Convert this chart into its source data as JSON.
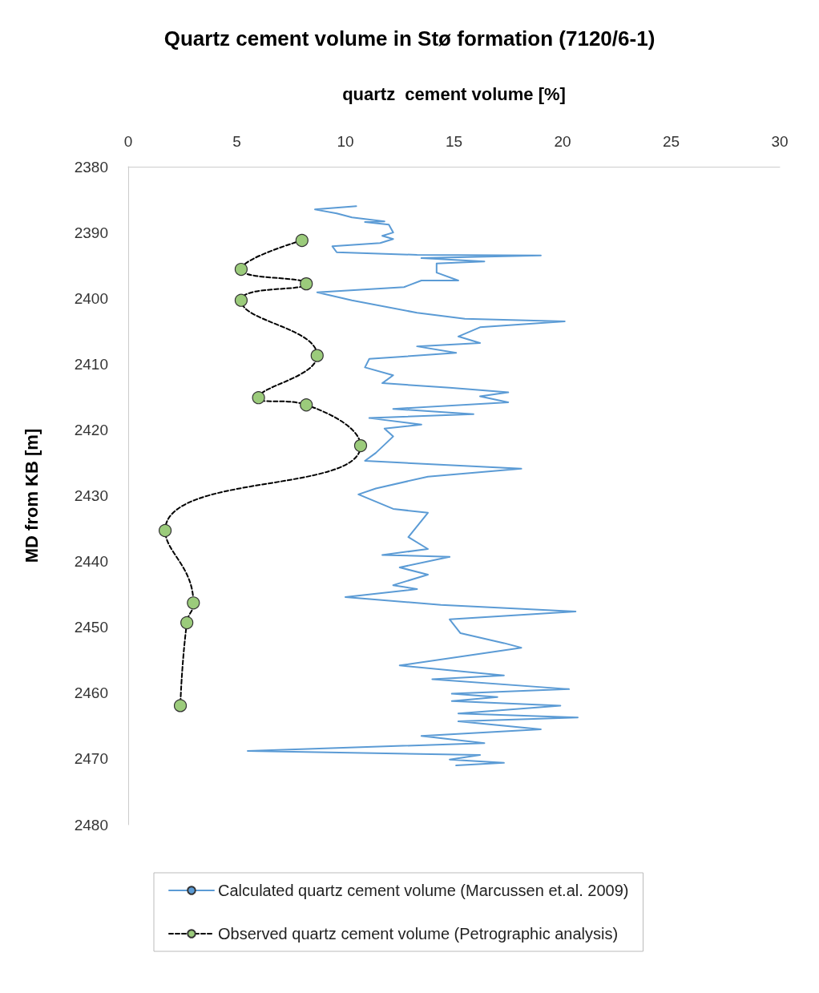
{
  "chart_data": {
    "type": "line",
    "title": "Quartz cement volume in Stø formation (7120/6-1)",
    "xlabel": "quartz  cement volume [%]",
    "ylabel": "MD from KB [m]",
    "xlim": [
      0,
      30
    ],
    "xticks": [
      0,
      5,
      10,
      15,
      20,
      25,
      30
    ],
    "ylim": [
      2480,
      2380
    ],
    "yticks": [
      2380,
      2390,
      2400,
      2410,
      2420,
      2430,
      2440,
      2450,
      2460,
      2470,
      2480
    ],
    "grid": false,
    "legend": "bottom",
    "series": [
      {
        "name": "Calculated quartz cement volume (Marcussen et.al. 2009)",
        "color": "#5b9bd5",
        "marker": "none",
        "line_style": "solid",
        "x": [
          10.5,
          8.6,
          9.6,
          10.3,
          11.8,
          10.9,
          12.0,
          12.2,
          11.7,
          12.2,
          11.6,
          9.4,
          9.6,
          13.3,
          19.0,
          13.5,
          16.4,
          14.2,
          14.2,
          15.2,
          13.5,
          12.7,
          8.7,
          10.3,
          13.3,
          15.5,
          20.1,
          16.2,
          15.2,
          16.2,
          13.3,
          15.1,
          11.1,
          10.9,
          12.2,
          11.7,
          14.8,
          17.5,
          16.2,
          17.5,
          12.2,
          15.9,
          11.1,
          13.5,
          11.8,
          12.2,
          11.4,
          10.9,
          18.1,
          13.8,
          11.4,
          10.6,
          12.2,
          13.8,
          12.9,
          13.8,
          11.7,
          14.8,
          12.5,
          13.8,
          12.2,
          13.3,
          10.0,
          14.4,
          20.6,
          14.8,
          15.3,
          17.3,
          18.1,
          12.5,
          17.3,
          14.0,
          20.3,
          14.9,
          17.0,
          14.9,
          19.9,
          15.2,
          20.7,
          15.2,
          19.0,
          13.5,
          16.4,
          5.5,
          16.2,
          14.8,
          17.3,
          15.1
        ],
        "values": [
          2386.0,
          2386.5,
          2387.1,
          2387.7,
          2388.3,
          2388.4,
          2388.8,
          2390.0,
          2390.5,
          2391.0,
          2391.6,
          2392.1,
          2393.0,
          2393.4,
          2393.5,
          2393.9,
          2394.4,
          2394.7,
          2396.1,
          2397.3,
          2397.3,
          2398.3,
          2399.1,
          2400.3,
          2402.2,
          2403.1,
          2403.5,
          2404.4,
          2405.8,
          2406.8,
          2407.3,
          2408.3,
          2409.2,
          2410.5,
          2411.7,
          2412.9,
          2413.6,
          2414.3,
          2414.9,
          2415.8,
          2416.8,
          2417.6,
          2418.2,
          2419.2,
          2419.8,
          2421.0,
          2423.5,
          2424.7,
          2425.9,
          2427.1,
          2428.9,
          2429.8,
          2432.0,
          2432.6,
          2436.3,
          2438.1,
          2439.0,
          2439.3,
          2440.9,
          2442.0,
          2443.6,
          2444.2,
          2445.4,
          2446.6,
          2447.6,
          2448.8,
          2450.9,
          2452.4,
          2453.1,
          2455.8,
          2457.3,
          2457.9,
          2459.4,
          2460.1,
          2460.6,
          2461.2,
          2461.9,
          2463.1,
          2463.7,
          2464.3,
          2465.5,
          2466.5,
          2467.6,
          2468.8,
          2469.4,
          2470.1,
          2470.6,
          2471.0
        ]
      },
      {
        "name": "Observed quartz cement volume (Petrographic analysis)",
        "color": "#9bcb7b",
        "marker": "circle",
        "line_style": "dashed",
        "x": [
          8.0,
          5.2,
          8.2,
          5.2,
          8.7,
          6.0,
          8.2,
          10.7,
          1.7,
          3.0,
          2.7,
          2.4
        ],
        "values": [
          2391.2,
          2395.6,
          2397.8,
          2400.3,
          2408.7,
          2415.1,
          2416.2,
          2422.4,
          2435.3,
          2446.3,
          2449.3,
          2461.9
        ]
      }
    ]
  }
}
